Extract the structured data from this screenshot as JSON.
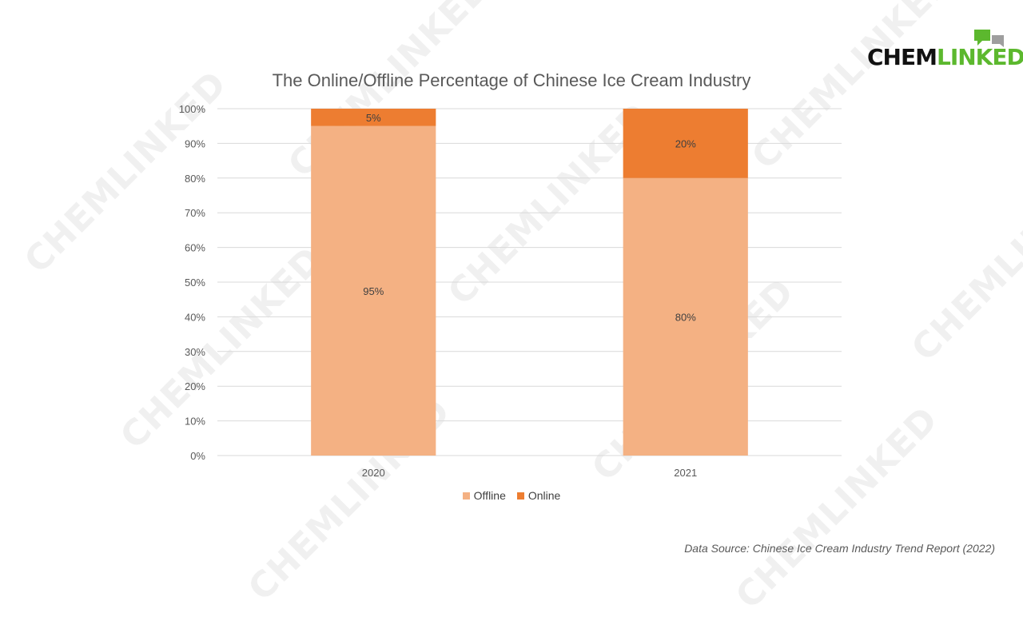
{
  "logo": {
    "part1": "CHEM",
    "part2": "LINKED",
    "accent": "#5cb82e"
  },
  "watermark": "CHEMLINKED",
  "source_text": "Data Source: Chinese Ice Cream Industry Trend Report (2022)",
  "chart_data": {
    "type": "bar",
    "stacked": true,
    "title": "The Online/Offline Percentage of Chinese Ice Cream Industry",
    "xlabel": "",
    "ylabel": "",
    "categories": [
      "2020",
      "2021"
    ],
    "series": [
      {
        "name": "Offline",
        "values": [
          95,
          80
        ],
        "labels": [
          "95%",
          "80%"
        ],
        "color": "#f4b183"
      },
      {
        "name": "Online",
        "values": [
          5,
          20
        ],
        "labels": [
          "5%",
          "20%"
        ],
        "color": "#ed7d31"
      }
    ],
    "ylim": [
      0,
      100
    ],
    "yticks": [
      "0%",
      "10%",
      "20%",
      "30%",
      "40%",
      "50%",
      "60%",
      "70%",
      "80%",
      "90%",
      "100%"
    ],
    "grid": true,
    "legend_position": "bottom"
  }
}
